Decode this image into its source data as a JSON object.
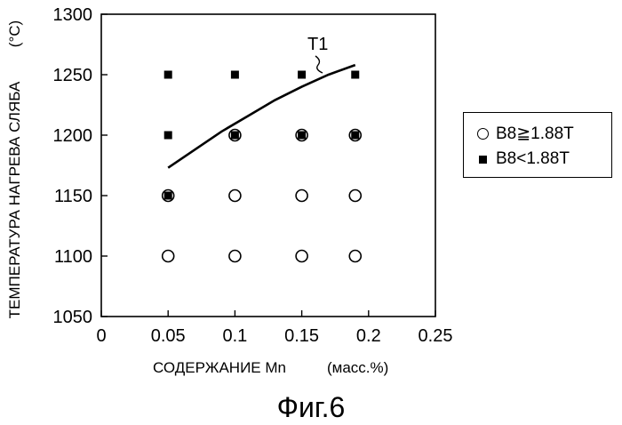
{
  "chart_data": {
    "type": "scatter",
    "xlabel": "СОДЕРЖАНИЕ Mn",
    "xlabel_unit": "(масс.%)",
    "ylabel": "ТЕМПЕРАТУРА НАГРЕВА СЛЯБА",
    "ylabel_unit": "(°C)",
    "xlim": [
      0,
      0.25
    ],
    "ylim": [
      1050,
      1300
    ],
    "xticks": [
      "0",
      "0.05",
      "0.1",
      "0.15",
      "0.2",
      "0.25"
    ],
    "yticks": [
      "1050",
      "1100",
      "1150",
      "1200",
      "1250",
      "1300"
    ],
    "series": [
      {
        "name": "B8≧1.88T",
        "marker": "open-circle",
        "points": [
          {
            "x": 0.05,
            "y": 1100
          },
          {
            "x": 0.1,
            "y": 1100
          },
          {
            "x": 0.15,
            "y": 1100
          },
          {
            "x": 0.19,
            "y": 1100
          },
          {
            "x": 0.05,
            "y": 1150
          },
          {
            "x": 0.1,
            "y": 1150
          },
          {
            "x": 0.15,
            "y": 1150
          },
          {
            "x": 0.19,
            "y": 1150
          },
          {
            "x": 0.1,
            "y": 1200
          },
          {
            "x": 0.15,
            "y": 1200
          },
          {
            "x": 0.19,
            "y": 1200
          }
        ]
      },
      {
        "name": "B8<1.88T",
        "marker": "filled-square",
        "points": [
          {
            "x": 0.05,
            "y": 1150
          },
          {
            "x": 0.05,
            "y": 1200
          },
          {
            "x": 0.1,
            "y": 1200
          },
          {
            "x": 0.15,
            "y": 1200
          },
          {
            "x": 0.19,
            "y": 1200
          },
          {
            "x": 0.05,
            "y": 1250
          },
          {
            "x": 0.1,
            "y": 1250
          },
          {
            "x": 0.15,
            "y": 1250
          },
          {
            "x": 0.19,
            "y": 1250
          }
        ]
      }
    ],
    "curve": {
      "label": "T1",
      "points": [
        {
          "x": 0.05,
          "y": 1173
        },
        {
          "x": 0.07,
          "y": 1188
        },
        {
          "x": 0.09,
          "y": 1203
        },
        {
          "x": 0.11,
          "y": 1216
        },
        {
          "x": 0.13,
          "y": 1229
        },
        {
          "x": 0.15,
          "y": 1240
        },
        {
          "x": 0.17,
          "y": 1250
        },
        {
          "x": 0.19,
          "y": 1258
        }
      ]
    },
    "legend_position": "right",
    "grid": false
  },
  "legend": {
    "items": [
      {
        "label": "B8≧1.88T",
        "marker": "open-circle"
      },
      {
        "label": "B8<1.88T",
        "marker": "filled-square"
      }
    ]
  },
  "caption": "Фиг.6"
}
